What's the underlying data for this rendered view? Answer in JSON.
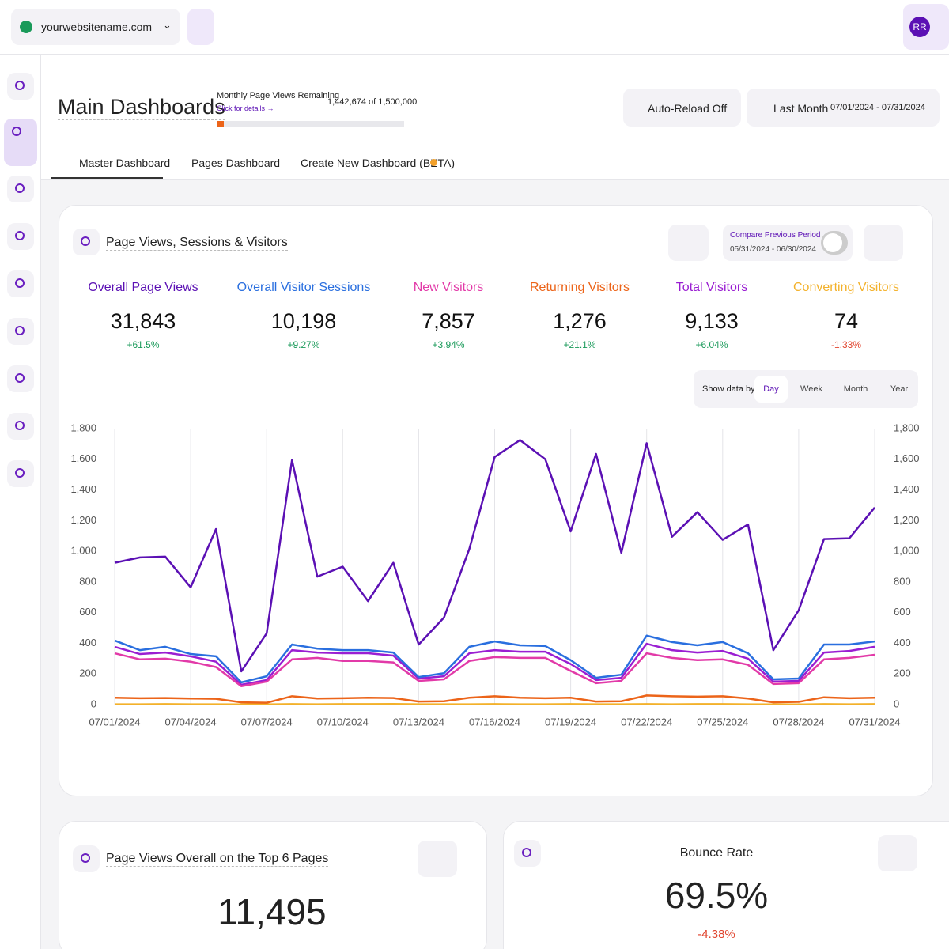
{
  "header": {
    "site": "yourwebsitename.com",
    "avatar": "RR"
  },
  "page": {
    "title": "Main Dashboards",
    "quota": {
      "caption": "Monthly Page Views Remaining",
      "link": "Click for details →",
      "remaining": {
        "value": 1442674,
        "label": "1,442,674"
      },
      "separator": "of",
      "total": {
        "value": 1500000,
        "label": "1,500,000"
      }
    },
    "auto_reload": "Auto-Reload Off",
    "range": {
      "label": "Last Month",
      "dates": "07/01/2024 - 07/31/2024"
    }
  },
  "tabs": [
    "Master Dashboard",
    "Pages Dashboard",
    "Create New Dashboard (BETA)"
  ],
  "card": {
    "title": "Page Views, Sessions & Visitors",
    "compare": {
      "label": "Compare Previous Period",
      "dates": "05/31/2024 - 06/30/2024"
    },
    "granularity": {
      "label": "Show data by:",
      "options": [
        "Day",
        "Week",
        "Month",
        "Year"
      ],
      "selected": 0
    }
  },
  "chart_data": {
    "type": "line",
    "categories": [
      "07/01/2024",
      null,
      null,
      "07/04/2024",
      null,
      null,
      "07/07/2024",
      null,
      null,
      "07/10/2024",
      null,
      null,
      "07/13/2024",
      null,
      null,
      "07/16/2024",
      null,
      null,
      "07/19/2024",
      null,
      null,
      "07/22/2024",
      null,
      null,
      "07/25/2024",
      null,
      null,
      "07/28/2024",
      null,
      null,
      "07/31/2024"
    ],
    "ylim": [
      0,
      1800
    ],
    "yticks": [
      0,
      200,
      400,
      600,
      800,
      {
        "value": 1000,
        "label": "1,000"
      },
      {
        "value": 1200,
        "label": "1,200"
      },
      {
        "value": 1400,
        "label": "1,400"
      },
      {
        "value": 1600,
        "label": "1,600"
      },
      {
        "value": 1800,
        "label": "1,800"
      }
    ],
    "y2lim": [
      0,
      1800
    ],
    "y2ticks": [
      0,
      200,
      400,
      600,
      800,
      {
        "value": 1000,
        "label": "1,000"
      },
      {
        "value": 1200,
        "label": "1,200"
      },
      {
        "value": 1400,
        "label": "1,400"
      },
      {
        "value": 1600,
        "label": "1,600"
      },
      {
        "value": 1800,
        "label": "1,800"
      }
    ],
    "grid": true,
    "series": [
      {
        "name": "Overall Page Views",
        "color": "#5b10b4",
        "total": {
          "value": 31843,
          "label": "31,843"
        },
        "change": {
          "value": 61.5,
          "label": "+61.5%"
        },
        "values": [
          925,
          960,
          965,
          765,
          1145,
          217,
          465,
          1595,
          835,
          900,
          675,
          925,
          392,
          568,
          1015,
          1615,
          1725,
          1600,
          1130,
          1635,
          990,
          1705,
          1095,
          1255,
          1075,
          1175,
          355,
          615,
          1080,
          1085,
          1285
        ]
      },
      {
        "name": "Overall Visitor Sessions",
        "color": "#2a6fdf",
        "total": {
          "value": 10198,
          "label": "10,198"
        },
        "change": {
          "value": 9.27,
          "label": "+9.27%"
        },
        "values": [
          418,
          355,
          377,
          330,
          315,
          145,
          185,
          392,
          365,
          355,
          355,
          340,
          180,
          205,
          377,
          412,
          387,
          382,
          290,
          175,
          195,
          450,
          408,
          387,
          408,
          335,
          165,
          170,
          392,
          392,
          412
        ]
      },
      {
        "name": "New Visitors",
        "color": "#e23aa8",
        "total": {
          "value": 7857,
          "label": "7,857"
        },
        "change": {
          "value": 3.94,
          "label": "+3.94%"
        },
        "values": [
          335,
          295,
          300,
          280,
          245,
          120,
          150,
          295,
          305,
          285,
          285,
          275,
          155,
          165,
          285,
          310,
          305,
          305,
          220,
          140,
          155,
          335,
          305,
          290,
          295,
          260,
          135,
          140,
          295,
          305,
          325
        ]
      },
      {
        "name": "Returning Visitors",
        "color": "#ec6419",
        "total": {
          "value": 1276,
          "label": "1,276"
        },
        "change": {
          "value": 21.1,
          "label": "+21.1%"
        },
        "values": [
          45,
          42,
          43,
          40,
          38,
          15,
          12,
          55,
          40,
          42,
          45,
          43,
          20,
          22,
          45,
          55,
          45,
          42,
          45,
          20,
          22,
          60,
          55,
          52,
          55,
          40,
          15,
          18,
          48,
          42,
          45
        ]
      },
      {
        "name": "Total Visitors",
        "color": "#9a1ed2",
        "total": {
          "value": 9133,
          "label": "9,133"
        },
        "change": {
          "value": 6.04,
          "label": "+6.04%"
        },
        "values": [
          377,
          330,
          340,
          315,
          280,
          130,
          160,
          355,
          340,
          335,
          335,
          320,
          170,
          185,
          335,
          355,
          345,
          345,
          265,
          160,
          175,
          397,
          355,
          340,
          350,
          300,
          150,
          155,
          340,
          350,
          377
        ]
      },
      {
        "name": "Converting Visitors",
        "color": "#f3b12a",
        "total": {
          "value": 74,
          "label": "74"
        },
        "change": {
          "value": -1.33,
          "label": "-1.33%"
        },
        "values": [
          2,
          2,
          3,
          2,
          2,
          1,
          1,
          3,
          2,
          3,
          3,
          4,
          2,
          2,
          2,
          3,
          2,
          2,
          3,
          2,
          2,
          3,
          2,
          3,
          3,
          2,
          1,
          1,
          3,
          2,
          3
        ]
      }
    ]
  },
  "cards": [
    {
      "title": "Page Views Overall on the Top 6 Pages",
      "value": {
        "value": 11495,
        "label": "11,495"
      }
    },
    {
      "title": "Bounce Rate",
      "value": {
        "value": 69.5,
        "label": "69.5%"
      },
      "change": {
        "value": -4.38,
        "label": "-4.38%"
      }
    }
  ]
}
